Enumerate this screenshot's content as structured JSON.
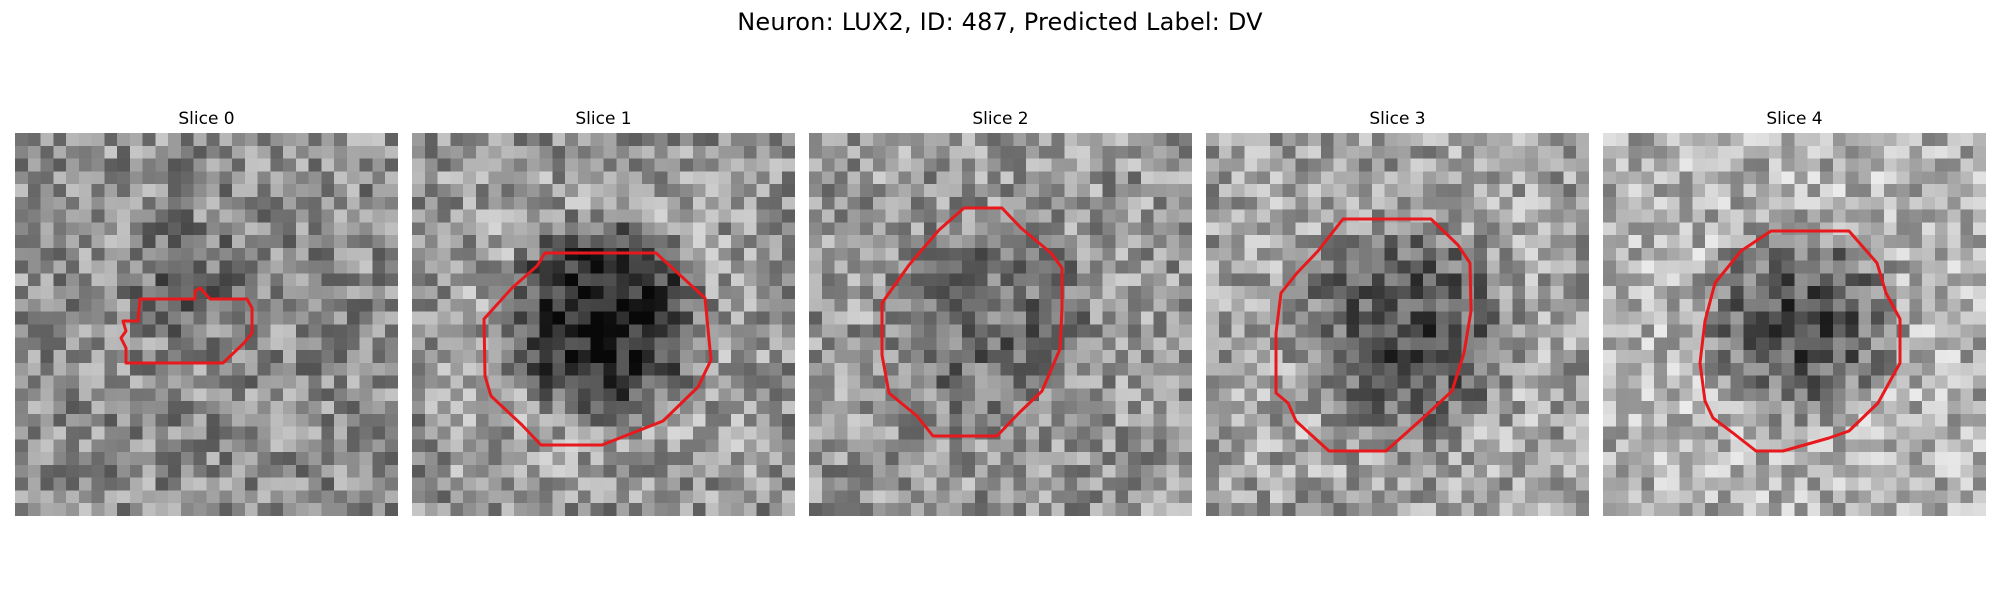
{
  "figure": {
    "title": "Neuron: LUX2, ID: 487, Predicted Label: DV"
  },
  "panels": [
    {
      "title": "Slice 0"
    },
    {
      "title": "Slice 1"
    },
    {
      "title": "Slice 2"
    },
    {
      "title": "Slice 3"
    },
    {
      "title": "Slice 4"
    }
  ],
  "colors": {
    "contour": "#e8191c",
    "background": "#ffffff"
  },
  "image_grid": {
    "cols": 30,
    "rows": 30,
    "colormap": "gray"
  }
}
